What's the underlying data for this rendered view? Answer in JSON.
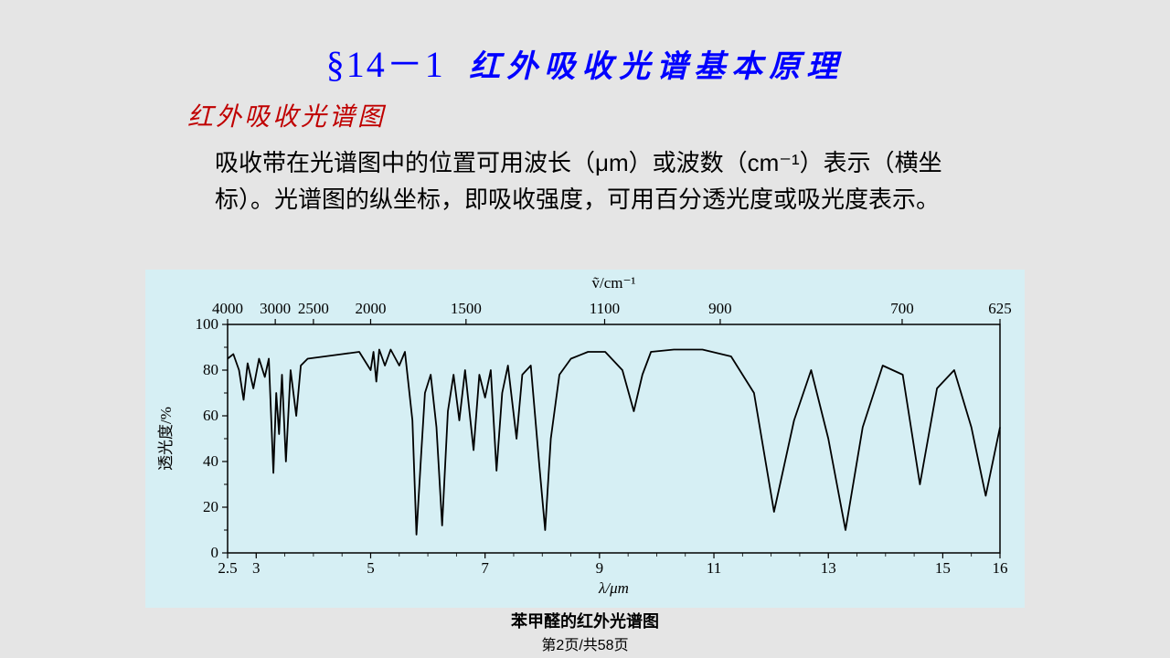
{
  "heading": {
    "section": "§14－1",
    "title": "红外吸收光谱基本原理"
  },
  "subtitle": "红外吸收光谱图",
  "body": "吸收带在光谱图中的位置可用波长（μm）或波数（cm⁻¹）表示（横坐标）。光谱图的纵坐标，即吸收强度，可用百分透光度或吸光度表示。",
  "pager": "第2页/共58页",
  "chart": {
    "type": "line",
    "caption": "苯甲醛的红外光谱图",
    "background_color": "#d6eff4",
    "line_color": "#000000",
    "line_width": 1.8,
    "top_axis": {
      "label": "ṽ/cm⁻¹",
      "ticks": [
        4000,
        3000,
        2500,
        2000,
        1500,
        1100,
        900,
        700,
        625
      ],
      "tick_x_um": [
        2.5,
        3.333,
        4.0,
        5.0,
        6.667,
        9.09,
        11.11,
        14.29,
        16.0
      ]
    },
    "x_axis": {
      "label": "λ/μm",
      "min": 2.5,
      "max": 16.0,
      "ticks": [
        2.5,
        3,
        5,
        7,
        9,
        11,
        13,
        15,
        16
      ]
    },
    "y_axis": {
      "label": "透光度/%",
      "min": 0,
      "max": 100,
      "ticks": [
        0,
        20,
        40,
        60,
        80,
        100
      ]
    },
    "series": [
      [
        2.5,
        85
      ],
      [
        2.6,
        87
      ],
      [
        2.7,
        80
      ],
      [
        2.78,
        67
      ],
      [
        2.85,
        83
      ],
      [
        2.95,
        72
      ],
      [
        3.05,
        85
      ],
      [
        3.15,
        77
      ],
      [
        3.22,
        85
      ],
      [
        3.3,
        35
      ],
      [
        3.35,
        70
      ],
      [
        3.4,
        52
      ],
      [
        3.45,
        78
      ],
      [
        3.52,
        40
      ],
      [
        3.6,
        80
      ],
      [
        3.7,
        60
      ],
      [
        3.78,
        82
      ],
      [
        3.9,
        85
      ],
      [
        4.2,
        86
      ],
      [
        4.5,
        87
      ],
      [
        4.8,
        88
      ],
      [
        5.0,
        80
      ],
      [
        5.05,
        88
      ],
      [
        5.1,
        75
      ],
      [
        5.15,
        89
      ],
      [
        5.25,
        82
      ],
      [
        5.35,
        89
      ],
      [
        5.5,
        82
      ],
      [
        5.6,
        88
      ],
      [
        5.73,
        58
      ],
      [
        5.8,
        8
      ],
      [
        5.88,
        42
      ],
      [
        5.95,
        70
      ],
      [
        6.05,
        78
      ],
      [
        6.15,
        55
      ],
      [
        6.25,
        12
      ],
      [
        6.35,
        62
      ],
      [
        6.45,
        78
      ],
      [
        6.55,
        58
      ],
      [
        6.65,
        80
      ],
      [
        6.8,
        45
      ],
      [
        6.9,
        78
      ],
      [
        7.0,
        68
      ],
      [
        7.1,
        80
      ],
      [
        7.2,
        36
      ],
      [
        7.3,
        70
      ],
      [
        7.4,
        82
      ],
      [
        7.55,
        50
      ],
      [
        7.65,
        78
      ],
      [
        7.8,
        82
      ],
      [
        7.95,
        38
      ],
      [
        8.05,
        10
      ],
      [
        8.15,
        50
      ],
      [
        8.3,
        78
      ],
      [
        8.5,
        85
      ],
      [
        8.8,
        88
      ],
      [
        9.1,
        88
      ],
      [
        9.4,
        80
      ],
      [
        9.6,
        62
      ],
      [
        9.75,
        78
      ],
      [
        9.9,
        88
      ],
      [
        10.3,
        89
      ],
      [
        10.8,
        89
      ],
      [
        11.3,
        86
      ],
      [
        11.7,
        70
      ],
      [
        12.05,
        18
      ],
      [
        12.4,
        58
      ],
      [
        12.7,
        80
      ],
      [
        13.0,
        50
      ],
      [
        13.3,
        10
      ],
      [
        13.6,
        55
      ],
      [
        13.95,
        82
      ],
      [
        14.3,
        78
      ],
      [
        14.6,
        30
      ],
      [
        14.9,
        72
      ],
      [
        15.2,
        80
      ],
      [
        15.5,
        55
      ],
      [
        15.75,
        25
      ],
      [
        16.0,
        55
      ]
    ]
  }
}
